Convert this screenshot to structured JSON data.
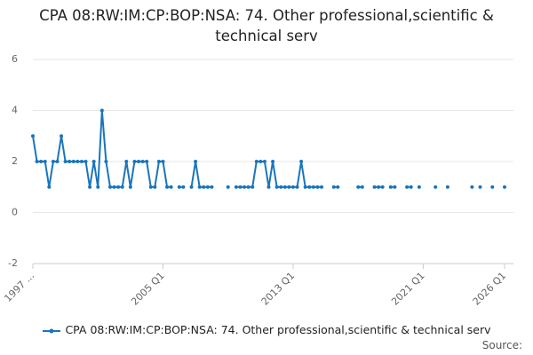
{
  "chart_data": {
    "type": "line",
    "title": "CPA 08:RW:IM:CP:BOP:NSA: 74. Other professional,scientific & technical serv",
    "source": "Source:",
    "categories": [
      "1997 ...",
      null,
      null,
      null,
      null,
      null,
      null,
      null,
      null,
      null,
      null,
      null,
      null,
      null,
      null,
      null,
      null,
      null,
      null,
      null,
      null,
      null,
      null,
      null,
      null,
      null,
      null,
      null,
      null,
      null,
      null,
      null,
      "2005 Q1",
      null,
      null,
      null,
      null,
      null,
      null,
      null,
      null,
      null,
      null,
      null,
      null,
      null,
      null,
      null,
      null,
      null,
      null,
      null,
      null,
      null,
      null,
      null,
      null,
      null,
      null,
      null,
      null,
      null,
      null,
      null,
      "2013 Q1",
      null,
      null,
      null,
      null,
      null,
      null,
      null,
      null,
      null,
      null,
      null,
      null,
      null,
      null,
      null,
      null,
      null,
      null,
      null,
      null,
      null,
      null,
      null,
      null,
      null,
      null,
      null,
      null,
      null,
      null,
      null,
      "2021 Q1",
      null,
      null,
      null,
      null,
      null,
      null,
      null,
      null,
      null,
      null,
      null,
      null,
      null,
      null,
      null,
      null,
      null,
      null,
      null,
      "2026 Q1"
    ],
    "series": [
      {
        "name": "CPA 08:RW:IM:CP:BOP:NSA: 74. Other professional,scientific & technical serv",
        "color": "#1a75bc",
        "values": [
          3,
          2,
          2,
          2,
          1,
          2,
          2,
          3,
          2,
          2,
          2,
          2,
          2,
          2,
          1,
          2,
          1,
          4,
          2,
          1,
          1,
          1,
          1,
          2,
          1,
          2,
          2,
          2,
          2,
          1,
          1,
          2,
          2,
          1,
          1,
          null,
          1,
          1,
          null,
          1,
          2,
          1,
          1,
          1,
          1,
          null,
          null,
          null,
          1,
          null,
          1,
          1,
          1,
          1,
          1,
          2,
          2,
          2,
          1,
          2,
          1,
          1,
          1,
          1,
          1,
          1,
          2,
          1,
          1,
          1,
          1,
          1,
          null,
          null,
          1,
          1,
          null,
          null,
          null,
          null,
          1,
          1,
          null,
          null,
          1,
          1,
          1,
          null,
          1,
          1,
          null,
          null,
          1,
          1,
          null,
          1,
          null,
          null,
          null,
          1,
          null,
          null,
          1,
          null,
          null,
          null,
          null,
          null,
          1,
          null,
          1,
          null,
          null,
          1,
          null,
          null,
          1
        ]
      }
    ],
    "ylim": [
      -2,
      6
    ],
    "yticks": [
      -2,
      0,
      2,
      4,
      6
    ],
    "grid": true
  }
}
